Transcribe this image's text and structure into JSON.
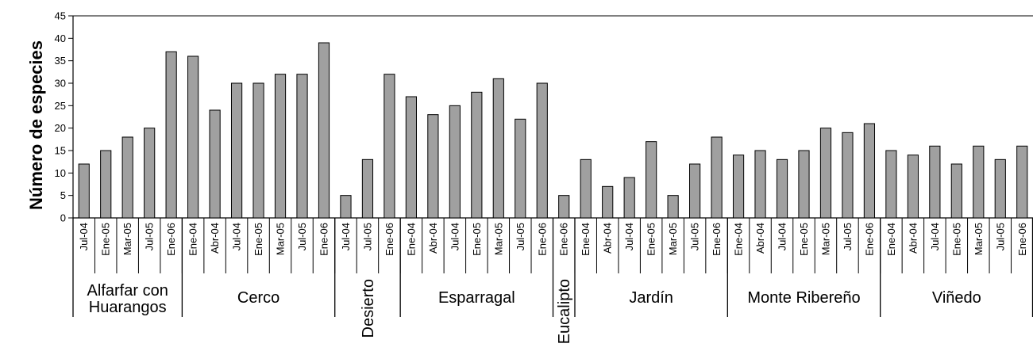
{
  "chart_data": {
    "type": "bar",
    "ylabel": "Número de especies",
    "xlabel": "",
    "ylim": [
      0,
      45
    ],
    "yticks": [
      0,
      5,
      10,
      15,
      20,
      25,
      30,
      35,
      40,
      45
    ],
    "grid": false,
    "bar_color": "#a0a0a0",
    "groups": [
      {
        "name": "Alfarfar con\nHuarangos",
        "label_orientation": "horizontal",
        "categories": [
          "Jul-04",
          "Ene-05",
          "Mar-05",
          "Jul-05",
          "Ene-06"
        ],
        "values": [
          12,
          15,
          18,
          20,
          37
        ]
      },
      {
        "name": "Cerco",
        "label_orientation": "horizontal",
        "categories": [
          "Ene-04",
          "Abr-04",
          "Jul-04",
          "Ene-05",
          "Mar-05",
          "Jul-05",
          "Ene-06"
        ],
        "values": [
          36,
          24,
          30,
          30,
          32,
          32,
          39
        ]
      },
      {
        "name": "Desierto",
        "label_orientation": "vertical",
        "categories": [
          "Jul-04",
          "Jul-05",
          "Ene-06"
        ],
        "values": [
          5,
          13,
          32
        ]
      },
      {
        "name": "Esparragal",
        "label_orientation": "horizontal",
        "categories": [
          "Ene-04",
          "Abr-04",
          "Jul-04",
          "Ene-05",
          "Mar-05",
          "Jul-05",
          "Ene-06"
        ],
        "values": [
          27,
          23,
          25,
          28,
          31,
          22,
          30
        ]
      },
      {
        "name": "Eucalipto",
        "label_orientation": "vertical",
        "categories": [
          "Ene-06"
        ],
        "values": [
          5
        ]
      },
      {
        "name": "Jardín",
        "label_orientation": "horizontal",
        "categories": [
          "Ene-04",
          "Abr-04",
          "Jul-04",
          "Ene-05",
          "Mar-05",
          "Jul-05",
          "Ene-06"
        ],
        "values": [
          13,
          7,
          9,
          17,
          5,
          12,
          18
        ]
      },
      {
        "name": "Monte Ribereño",
        "label_orientation": "horizontal",
        "categories": [
          "Ene-04",
          "Abr-04",
          "Jul-04",
          "Ene-05",
          "Mar-05",
          "Jul-05",
          "Ene-06"
        ],
        "values": [
          14,
          15,
          13,
          15,
          20,
          19,
          21
        ]
      },
      {
        "name": "Viñedo",
        "label_orientation": "horizontal",
        "categories": [
          "Ene-04",
          "Abr-04",
          "Jul-04",
          "Ene-05",
          "Mar-05",
          "Jul-05",
          "Ene-06"
        ],
        "values": [
          15,
          14,
          16,
          12,
          16,
          13,
          16
        ]
      }
    ]
  }
}
